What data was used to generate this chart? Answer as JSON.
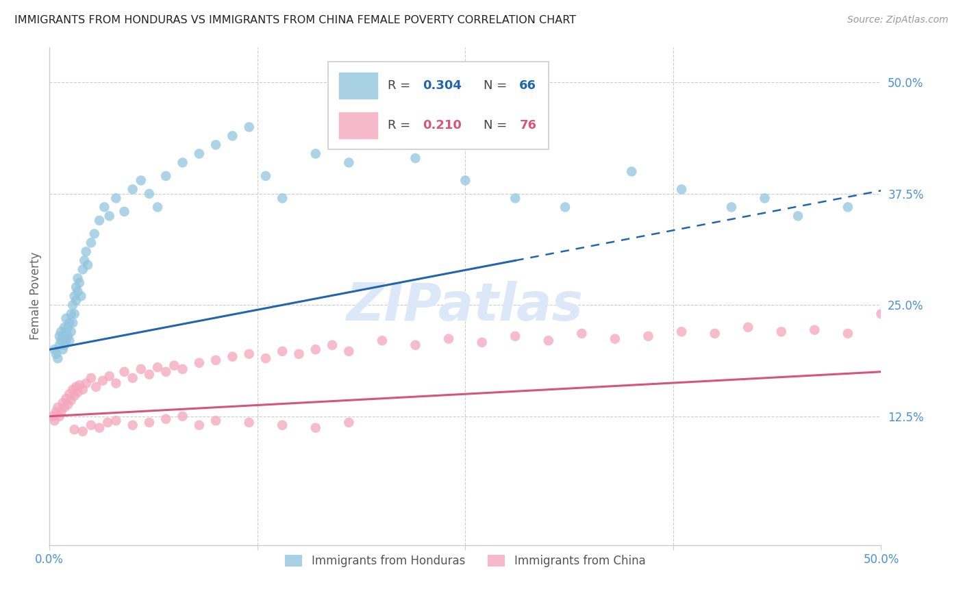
{
  "title": "IMMIGRANTS FROM HONDURAS VS IMMIGRANTS FROM CHINA FEMALE POVERTY CORRELATION CHART",
  "source": "Source: ZipAtlas.com",
  "ylabel": "Female Poverty",
  "xlim": [
    0.0,
    0.5
  ],
  "ylim": [
    -0.02,
    0.54
  ],
  "xticks": [
    0.0,
    0.125,
    0.25,
    0.375,
    0.5
  ],
  "xticklabels": [
    "0.0%",
    "",
    "",
    "",
    "50.0%"
  ],
  "yticks": [
    0.125,
    0.25,
    0.375,
    0.5
  ],
  "yticklabels": [
    "12.5%",
    "25.0%",
    "37.5%",
    "50.0%"
  ],
  "label_blue": "Immigrants from Honduras",
  "label_pink": "Immigrants from China",
  "color_blue": "#92c5de",
  "color_pink": "#f4a6be",
  "color_blue_line": "#2166ac",
  "color_pink_line": "#d6557a",
  "background_color": "#ffffff",
  "grid_color": "#cccccc",
  "watermark_color": "#dce8f8",
  "honduras_x": [
    0.003,
    0.004,
    0.005,
    0.006,
    0.006,
    0.007,
    0.007,
    0.008,
    0.008,
    0.009,
    0.009,
    0.01,
    0.01,
    0.01,
    0.011,
    0.011,
    0.012,
    0.012,
    0.013,
    0.013,
    0.014,
    0.014,
    0.015,
    0.015,
    0.016,
    0.016,
    0.017,
    0.017,
    0.018,
    0.019,
    0.02,
    0.021,
    0.022,
    0.023,
    0.025,
    0.027,
    0.03,
    0.033,
    0.036,
    0.04,
    0.045,
    0.05,
    0.055,
    0.06,
    0.065,
    0.07,
    0.08,
    0.09,
    0.1,
    0.11,
    0.12,
    0.13,
    0.14,
    0.16,
    0.18,
    0.2,
    0.22,
    0.25,
    0.28,
    0.31,
    0.35,
    0.38,
    0.41,
    0.43,
    0.45,
    0.48
  ],
  "honduras_y": [
    0.2,
    0.195,
    0.19,
    0.205,
    0.215,
    0.21,
    0.22,
    0.2,
    0.215,
    0.205,
    0.225,
    0.21,
    0.22,
    0.235,
    0.215,
    0.225,
    0.23,
    0.21,
    0.24,
    0.22,
    0.25,
    0.23,
    0.26,
    0.24,
    0.27,
    0.255,
    0.28,
    0.265,
    0.275,
    0.26,
    0.29,
    0.3,
    0.31,
    0.295,
    0.32,
    0.33,
    0.345,
    0.36,
    0.35,
    0.37,
    0.355,
    0.38,
    0.39,
    0.375,
    0.36,
    0.395,
    0.41,
    0.42,
    0.43,
    0.44,
    0.45,
    0.395,
    0.37,
    0.42,
    0.41,
    0.43,
    0.415,
    0.39,
    0.37,
    0.36,
    0.4,
    0.38,
    0.36,
    0.37,
    0.35,
    0.36
  ],
  "china_x": [
    0.002,
    0.003,
    0.004,
    0.005,
    0.006,
    0.007,
    0.008,
    0.009,
    0.01,
    0.011,
    0.012,
    0.013,
    0.014,
    0.015,
    0.016,
    0.017,
    0.018,
    0.02,
    0.022,
    0.025,
    0.028,
    0.032,
    0.036,
    0.04,
    0.045,
    0.05,
    0.055,
    0.06,
    0.065,
    0.07,
    0.075,
    0.08,
    0.09,
    0.1,
    0.11,
    0.12,
    0.13,
    0.14,
    0.15,
    0.16,
    0.17,
    0.18,
    0.2,
    0.22,
    0.24,
    0.26,
    0.28,
    0.3,
    0.32,
    0.34,
    0.36,
    0.38,
    0.4,
    0.42,
    0.44,
    0.46,
    0.48,
    0.5,
    0.015,
    0.02,
    0.025,
    0.03,
    0.035,
    0.04,
    0.05,
    0.06,
    0.07,
    0.08,
    0.09,
    0.1,
    0.12,
    0.14,
    0.16,
    0.18
  ],
  "china_y": [
    0.125,
    0.12,
    0.13,
    0.135,
    0.125,
    0.13,
    0.14,
    0.135,
    0.145,
    0.138,
    0.15,
    0.143,
    0.155,
    0.148,
    0.158,
    0.152,
    0.16,
    0.155,
    0.162,
    0.168,
    0.158,
    0.165,
    0.17,
    0.162,
    0.175,
    0.168,
    0.178,
    0.172,
    0.18,
    0.175,
    0.182,
    0.178,
    0.185,
    0.188,
    0.192,
    0.195,
    0.19,
    0.198,
    0.195,
    0.2,
    0.205,
    0.198,
    0.21,
    0.205,
    0.212,
    0.208,
    0.215,
    0.21,
    0.218,
    0.212,
    0.215,
    0.22,
    0.218,
    0.225,
    0.22,
    0.222,
    0.218,
    0.24,
    0.11,
    0.108,
    0.115,
    0.112,
    0.118,
    0.12,
    0.115,
    0.118,
    0.122,
    0.125,
    0.115,
    0.12,
    0.118,
    0.115,
    0.112,
    0.118
  ]
}
